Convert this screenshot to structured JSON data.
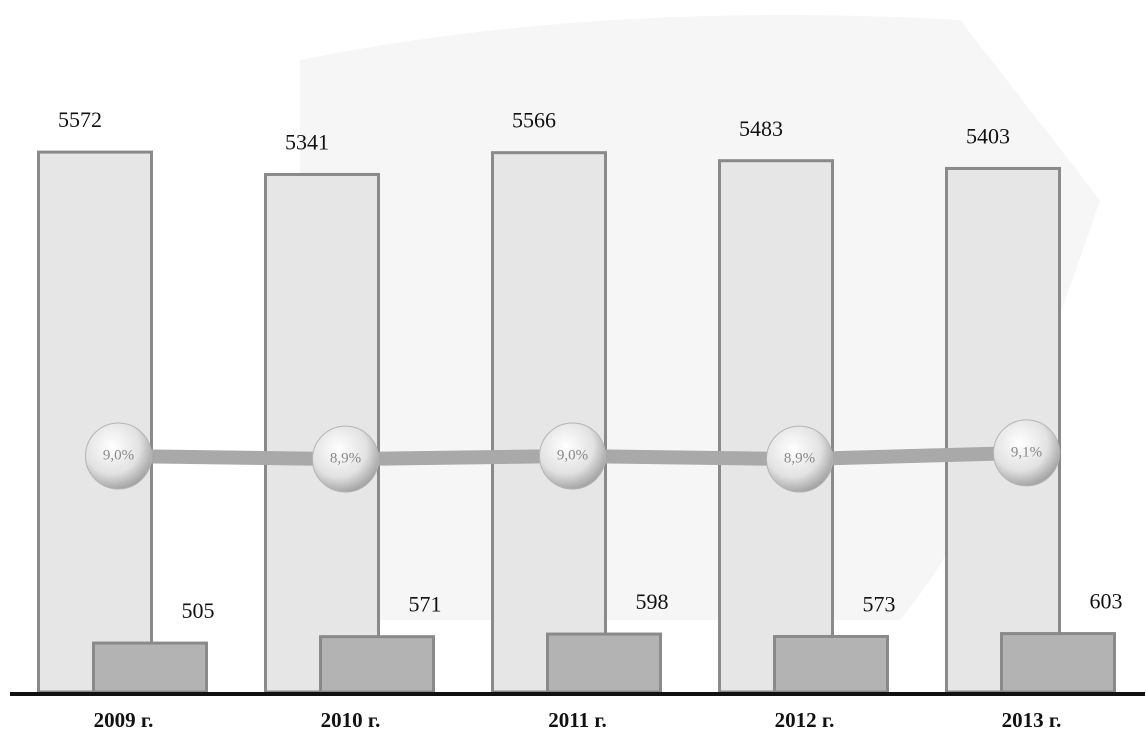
{
  "chart_data": {
    "type": "bar",
    "categories": [
      "2009 г.",
      "2010 г.",
      "2011 г.",
      "2012 г.",
      "2013 г."
    ],
    "series": [
      {
        "color": "#e6e6e6",
        "values": [
          5572,
          5341,
          5566,
          5483,
          5403
        ]
      },
      {
        "color": "#b3b3b3",
        "values": [
          505,
          571,
          598,
          573,
          603
        ]
      },
      {
        "type": "line",
        "axis": "y2",
        "color": "#a9a9a9",
        "values": [
          9.0,
          8.9,
          9.0,
          8.9,
          9.1
        ],
        "value_labels": [
          "9,0%",
          "8,9%",
          "9,0%",
          "8,9%",
          "9,1%"
        ]
      }
    ],
    "ylim": [
      0,
      5800
    ],
    "y2lim": [
      0,
      18
    ]
  }
}
